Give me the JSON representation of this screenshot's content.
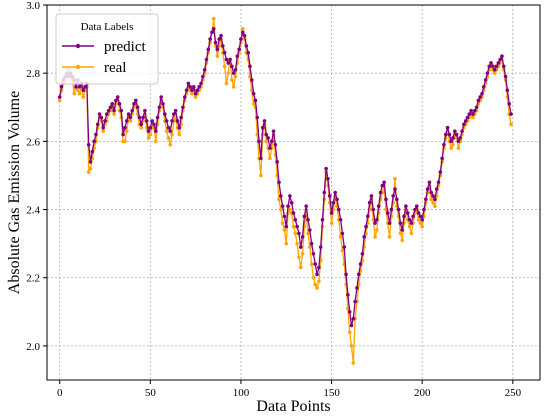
{
  "chart_data": {
    "type": "line",
    "title": "",
    "xlabel": "Data Points",
    "ylabel": "Absolute Gas Emission Volume",
    "xlim": [
      -7,
      265
    ],
    "ylim": [
      1.9,
      3.0
    ],
    "x_ticks": [
      0,
      50,
      100,
      150,
      200,
      250
    ],
    "y_ticks": [
      2.0,
      2.2,
      2.4,
      2.6,
      2.8,
      3.0
    ],
    "x_tick_labels": [
      "0",
      "50",
      "100",
      "150",
      "200",
      "250"
    ],
    "y_tick_labels": [
      "2.0",
      "2.2",
      "2.4",
      "2.6",
      "2.8",
      "3.0"
    ],
    "grid": true,
    "legend": {
      "title": "Data Labels",
      "placement": "top-left"
    },
    "x_start": 0,
    "series": [
      {
        "name": "predict",
        "color": "#800080",
        "values": [
          2.73,
          2.76,
          2.78,
          2.79,
          2.8,
          2.79,
          2.8,
          2.79,
          2.78,
          2.76,
          2.78,
          2.76,
          2.77,
          2.75,
          2.76,
          2.77,
          2.59,
          2.54,
          2.57,
          2.6,
          2.62,
          2.65,
          2.68,
          2.67,
          2.64,
          2.66,
          2.68,
          2.69,
          2.7,
          2.71,
          2.69,
          2.72,
          2.73,
          2.71,
          2.69,
          2.62,
          2.64,
          2.66,
          2.68,
          2.67,
          2.69,
          2.71,
          2.72,
          2.7,
          2.67,
          2.65,
          2.67,
          2.69,
          2.66,
          2.63,
          2.64,
          2.66,
          2.65,
          2.63,
          2.67,
          2.7,
          2.73,
          2.71,
          2.68,
          2.66,
          2.64,
          2.63,
          2.66,
          2.68,
          2.69,
          2.66,
          2.64,
          2.67,
          2.7,
          2.73,
          2.75,
          2.77,
          2.76,
          2.75,
          2.76,
          2.74,
          2.75,
          2.76,
          2.77,
          2.79,
          2.81,
          2.84,
          2.87,
          2.9,
          2.92,
          2.93,
          2.89,
          2.87,
          2.9,
          2.91,
          2.88,
          2.86,
          2.84,
          2.83,
          2.84,
          2.82,
          2.8,
          2.81,
          2.85,
          2.87,
          2.9,
          2.92,
          2.91,
          2.88,
          2.86,
          2.82,
          2.78,
          2.74,
          2.72,
          2.67,
          2.6,
          2.55,
          2.64,
          2.66,
          2.62,
          2.61,
          2.58,
          2.6,
          2.63,
          2.59,
          2.54,
          2.48,
          2.44,
          2.41,
          2.38,
          2.35,
          2.41,
          2.44,
          2.42,
          2.39,
          2.37,
          2.35,
          2.33,
          2.29,
          2.32,
          2.38,
          2.41,
          2.37,
          2.34,
          2.3,
          2.27,
          2.24,
          2.21,
          2.23,
          2.29,
          2.37,
          2.45,
          2.52,
          2.49,
          2.44,
          2.39,
          2.42,
          2.45,
          2.43,
          2.4,
          2.37,
          2.33,
          2.29,
          2.21,
          2.15,
          2.1,
          2.06,
          2.08,
          2.13,
          2.17,
          2.21,
          2.24,
          2.27,
          2.32,
          2.35,
          2.38,
          2.42,
          2.44,
          2.4,
          2.36,
          2.37,
          2.41,
          2.45,
          2.47,
          2.48,
          2.43,
          2.39,
          2.36,
          2.4,
          2.44,
          2.46,
          2.43,
          2.4,
          2.36,
          2.34,
          2.38,
          2.41,
          2.39,
          2.37,
          2.36,
          2.38,
          2.4,
          2.41,
          2.39,
          2.38,
          2.37,
          2.4,
          2.43,
          2.46,
          2.48,
          2.45,
          2.44,
          2.43,
          2.46,
          2.48,
          2.51,
          2.55,
          2.59,
          2.62,
          2.64,
          2.62,
          2.6,
          2.61,
          2.63,
          2.62,
          2.6,
          2.61,
          2.63,
          2.65,
          2.66,
          2.67,
          2.68,
          2.69,
          2.68,
          2.69,
          2.7,
          2.72,
          2.73,
          2.74,
          2.76,
          2.78,
          2.8,
          2.82,
          2.83,
          2.82,
          2.81,
          2.82,
          2.83,
          2.84,
          2.85,
          2.82,
          2.79,
          2.75,
          2.71,
          2.68
        ]
      },
      {
        "name": "real",
        "color": "#FFA500",
        "values": [
          2.72,
          2.75,
          2.77,
          2.78,
          2.8,
          2.81,
          2.79,
          2.78,
          2.74,
          2.76,
          2.75,
          2.74,
          2.76,
          2.73,
          2.75,
          2.76,
          2.51,
          2.52,
          2.55,
          2.58,
          2.6,
          2.64,
          2.67,
          2.66,
          2.63,
          2.65,
          2.66,
          2.68,
          2.69,
          2.7,
          2.68,
          2.71,
          2.73,
          2.69,
          2.67,
          2.6,
          2.6,
          2.63,
          2.67,
          2.66,
          2.68,
          2.7,
          2.71,
          2.68,
          2.65,
          2.64,
          2.66,
          2.68,
          2.64,
          2.61,
          2.62,
          2.64,
          2.64,
          2.6,
          2.65,
          2.69,
          2.72,
          2.7,
          2.66,
          2.63,
          2.61,
          2.59,
          2.62,
          2.66,
          2.67,
          2.64,
          2.62,
          2.65,
          2.69,
          2.72,
          2.74,
          2.76,
          2.75,
          2.74,
          2.75,
          2.73,
          2.74,
          2.75,
          2.76,
          2.78,
          2.8,
          2.83,
          2.86,
          2.89,
          2.92,
          2.96,
          2.88,
          2.85,
          2.88,
          2.9,
          2.86,
          2.82,
          2.77,
          2.8,
          2.84,
          2.78,
          2.76,
          2.79,
          2.83,
          2.86,
          2.89,
          2.93,
          2.9,
          2.86,
          2.84,
          2.79,
          2.75,
          2.71,
          2.7,
          2.62,
          2.55,
          2.5,
          2.62,
          2.65,
          2.6,
          2.58,
          2.55,
          2.58,
          2.62,
          2.56,
          2.5,
          2.43,
          2.4,
          2.36,
          2.34,
          2.3,
          2.39,
          2.4,
          2.39,
          2.35,
          2.33,
          2.3,
          2.26,
          2.23,
          2.27,
          2.35,
          2.39,
          2.33,
          2.29,
          2.24,
          2.2,
          2.18,
          2.17,
          2.19,
          2.25,
          2.35,
          2.43,
          2.51,
          2.47,
          2.42,
          2.36,
          2.4,
          2.44,
          2.41,
          2.37,
          2.32,
          2.28,
          2.24,
          2.18,
          2.11,
          2.04,
          2.0,
          1.95,
          2.08,
          2.13,
          2.18,
          2.22,
          2.25,
          2.29,
          2.33,
          2.36,
          2.4,
          2.43,
          2.37,
          2.32,
          2.34,
          2.39,
          2.43,
          2.45,
          2.47,
          2.4,
          2.36,
          2.32,
          2.38,
          2.42,
          2.49,
          2.41,
          2.38,
          2.33,
          2.31,
          2.36,
          2.4,
          2.37,
          2.35,
          2.33,
          2.36,
          2.39,
          2.4,
          2.37,
          2.36,
          2.35,
          2.38,
          2.42,
          2.45,
          2.47,
          2.43,
          2.42,
          2.41,
          2.44,
          2.47,
          2.5,
          2.54,
          2.58,
          2.61,
          2.64,
          2.6,
          2.58,
          2.59,
          2.62,
          2.61,
          2.58,
          2.6,
          2.62,
          2.64,
          2.65,
          2.66,
          2.67,
          2.68,
          2.67,
          2.68,
          2.69,
          2.71,
          2.72,
          2.73,
          2.75,
          2.77,
          2.79,
          2.81,
          2.82,
          2.81,
          2.8,
          2.81,
          2.82,
          2.83,
          2.85,
          2.81,
          2.78,
          2.73,
          2.68,
          2.65
        ]
      }
    ]
  }
}
